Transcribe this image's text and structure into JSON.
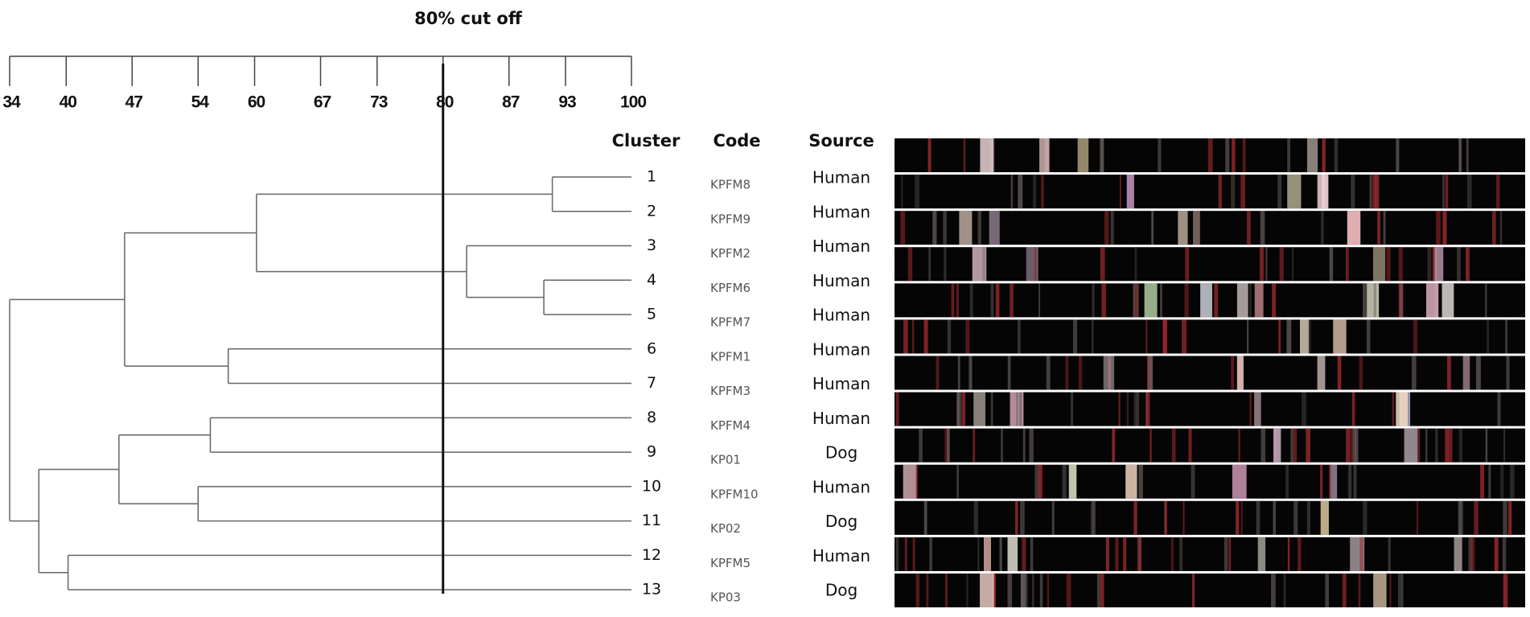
{
  "chart_data": {
    "type": "dendrogram",
    "title": "80% cut off",
    "cutoff": 80,
    "xlim": [
      34,
      100
    ],
    "xticks": [
      34,
      40,
      47,
      54,
      60,
      67,
      73,
      80,
      87,
      93,
      100
    ],
    "headers": [
      "Cluster",
      "Code",
      "Source"
    ],
    "tree": {
      "value": 34.0,
      "children": [
        {
          "value": 46.2,
          "children": [
            {
              "value": 60.2,
              "children": [
                {
                  "value": 91.6,
                  "children": [
                    {
                      "cluster": 1,
                      "code": "KPFM8",
                      "source": "Human"
                    },
                    {
                      "cluster": 2,
                      "code": "KPFM9",
                      "source": "Human"
                    }
                  ]
                },
                {
                  "value": 82.5,
                  "children": [
                    {
                      "cluster": 3,
                      "code": "KPFM2",
                      "source": "Human"
                    },
                    {
                      "value": 90.7,
                      "children": [
                        {
                          "cluster": 4,
                          "code": "KPFM6",
                          "source": "Human"
                        },
                        {
                          "cluster": 5,
                          "code": "KPFM7",
                          "source": "Human"
                        }
                      ]
                    }
                  ]
                }
              ]
            },
            {
              "value": 57.2,
              "children": [
                {
                  "cluster": 6,
                  "code": "KPFM1",
                  "source": "Human"
                },
                {
                  "cluster": 7,
                  "code": "KPFM3",
                  "source": "Human"
                }
              ]
            }
          ]
        },
        {
          "value": 37.1,
          "children": [
            {
              "value": 45.6,
              "children": [
                {
                  "value": 55.3,
                  "children": [
                    {
                      "cluster": 8,
                      "code": "KPFM4",
                      "source": "Human"
                    },
                    {
                      "cluster": 9,
                      "code": "KP01",
                      "source": "Dog"
                    }
                  ]
                },
                {
                  "value": 54.0,
                  "children": [
                    {
                      "cluster": 10,
                      "code": "KPFM10",
                      "source": "Human"
                    },
                    {
                      "cluster": 11,
                      "code": "KP02",
                      "source": "Dog"
                    }
                  ]
                }
              ]
            },
            {
              "value": 40.2,
              "children": [
                {
                  "cluster": 12,
                  "code": "KPFM5",
                  "source": "Human"
                },
                {
                  "cluster": 13,
                  "code": "KP03",
                  "source": "Dog"
                }
              ]
            }
          ]
        }
      ]
    }
  }
}
